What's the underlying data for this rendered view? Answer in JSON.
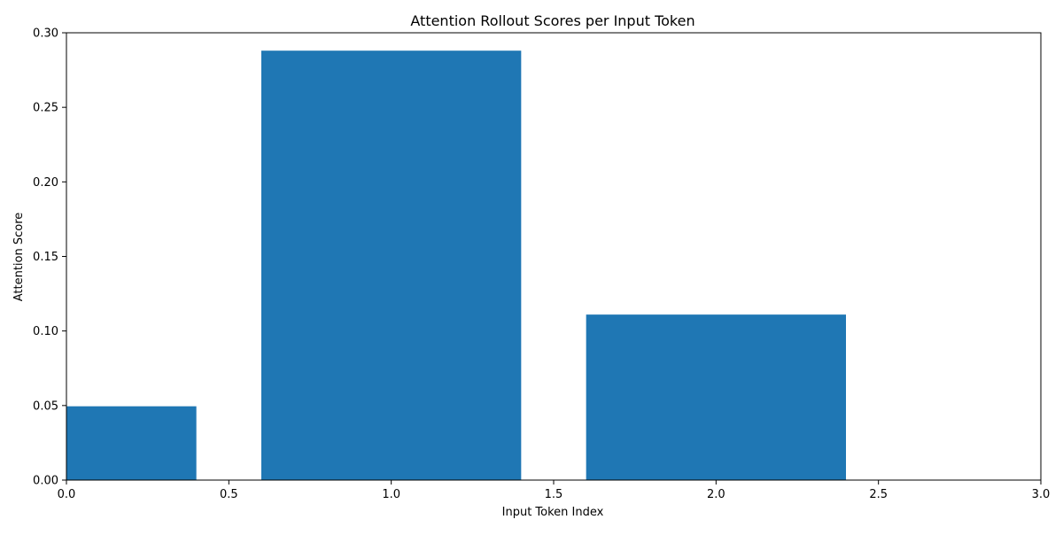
{
  "colors": {
    "bar": "#1f77b4",
    "axis": "#000000",
    "background": "#ffffff"
  },
  "chart_data": {
    "type": "bar",
    "title": "Attention Rollout Scores per Input Token",
    "xlabel": "Input Token Index",
    "ylabel": "Attention Score",
    "x": [
      0,
      1,
      2
    ],
    "values": [
      0.0495,
      0.288,
      0.111
    ],
    "bar_width": 0.8,
    "xlim": [
      0,
      3.0
    ],
    "ylim": [
      0,
      0.3
    ],
    "xticks": [
      0.0,
      0.5,
      1.0,
      1.5,
      2.0,
      2.5,
      3.0
    ],
    "xtick_labels": [
      "0.0",
      "0.5",
      "1.0",
      "1.5",
      "2.0",
      "2.5",
      "3.0"
    ],
    "yticks": [
      0.0,
      0.05,
      0.1,
      0.15,
      0.2,
      0.25,
      0.3
    ],
    "ytick_labels": [
      "0.00",
      "0.05",
      "0.10",
      "0.15",
      "0.20",
      "0.25",
      "0.30"
    ],
    "grid": false,
    "legend": "none"
  }
}
